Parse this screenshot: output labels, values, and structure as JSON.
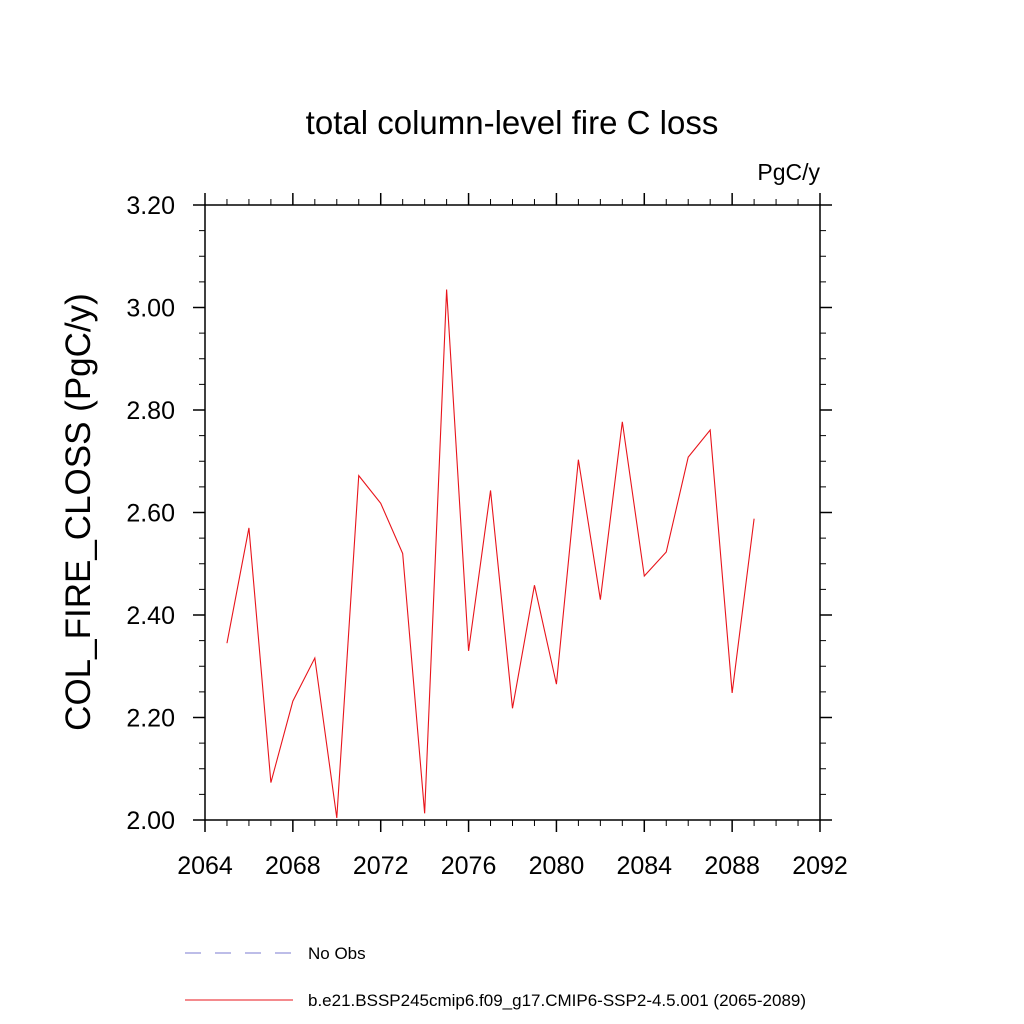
{
  "chart_data": {
    "type": "line",
    "title": "total column-level fire C loss",
    "units": "PgC/y",
    "ylabel": "COL_FIRE_CLOSS  (PgC/y)",
    "xlabel": "",
    "xlim": [
      2064,
      2092
    ],
    "ylim": [
      2.0,
      3.2
    ],
    "xticks": [
      2064,
      2068,
      2072,
      2076,
      2080,
      2084,
      2088,
      2092
    ],
    "xtick_labels": [
      "2064",
      "2068",
      "2072",
      "2076",
      "2080",
      "2084",
      "2088",
      "2092"
    ],
    "yticks": [
      2.0,
      2.2,
      2.4,
      2.6,
      2.8,
      3.0,
      3.2
    ],
    "ytick_labels": [
      "2.00",
      "2.20",
      "2.40",
      "2.60",
      "2.80",
      "3.00",
      "3.20"
    ],
    "x": [
      2065,
      2066,
      2067,
      2068,
      2069,
      2070,
      2071,
      2072,
      2073,
      2074,
      2075,
      2076,
      2077,
      2078,
      2079,
      2080,
      2081,
      2082,
      2083,
      2084,
      2085,
      2086,
      2087,
      2088,
      2089
    ],
    "series": [
      {
        "name": "b.e21.BSSP245cmip6.f09_g17.CMIP6-SSP2-4.5.001 (2065-2089)",
        "color": "#e8141b",
        "values": [
          2.345,
          2.57,
          2.073,
          2.232,
          2.316,
          2.004,
          2.672,
          2.618,
          2.52,
          2.013,
          3.035,
          2.33,
          2.643,
          2.218,
          2.458,
          2.265,
          2.703,
          2.43,
          2.777,
          2.476,
          2.523,
          2.708,
          2.761,
          2.248,
          2.588
        ]
      }
    ],
    "legend": [
      {
        "label": "No Obs",
        "style": "dashed",
        "color": "#7b7bd0"
      },
      {
        "label": "b.e21.BSSP245cmip6.f09_g17.CMIP6-SSP2-4.5.001 (2065-2089)",
        "style": "solid",
        "color": "#e8141b"
      }
    ],
    "legend_position": "bottom",
    "grid": false
  }
}
